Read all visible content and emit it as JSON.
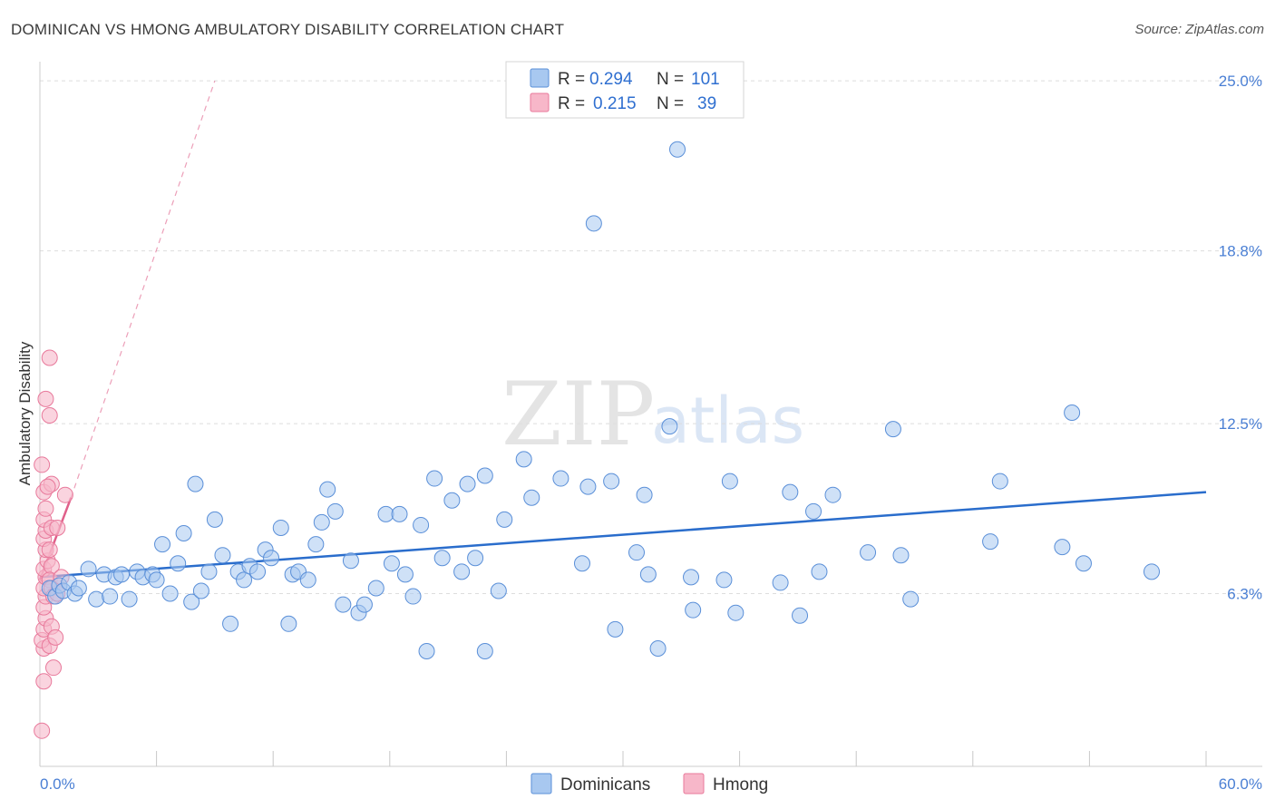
{
  "title": "DOMINICAN VS HMONG AMBULATORY DISABILITY CORRELATION CHART",
  "source": "Source: ZipAtlas.com",
  "watermark": {
    "zip": "ZIP",
    "atlas": "atlas"
  },
  "colors": {
    "dominican_fill": "#a8c8f0",
    "dominican_stroke": "#5a8fd8",
    "dominican_line": "#2a6dcc",
    "hmong_fill": "#f7b7c9",
    "hmong_stroke": "#e8799b",
    "hmong_line": "#e0608a",
    "grid": "#dddddd",
    "tick_text": "#4a7fd4"
  },
  "legend": {
    "rows": [
      {
        "r_label": "R =",
        "r_value": "0.294",
        "n_label": "N =",
        "n_value": "101"
      },
      {
        "r_label": "R =",
        "r_value": "0.215",
        "n_label": "N =",
        "n_value": "39"
      }
    ]
  },
  "bottom_legend": [
    "Dominicans",
    "Hmong"
  ],
  "chart_data": {
    "type": "scatter",
    "title": "DOMINICAN VS HMONG AMBULATORY DISABILITY CORRELATION CHART",
    "xlabel": "",
    "ylabel": "Ambulatory Disability",
    "xlim": [
      0,
      60
    ],
    "ylim": [
      0,
      25.7
    ],
    "x_tick_labels": [
      "0.0%",
      "60.0%"
    ],
    "y_ticks": [
      6.3,
      12.5,
      18.8,
      25.0
    ],
    "y_tick_labels": [
      "6.3%",
      "12.5%",
      "18.8%",
      "25.0%"
    ],
    "grid": true,
    "series": [
      {
        "name": "Dominicans",
        "r": 0.294,
        "n": 101,
        "trend": {
          "x0": 0,
          "y0": 6.9,
          "x1": 60,
          "y1": 10.0
        },
        "points": [
          [
            0.5,
            6.5
          ],
          [
            0.8,
            6.2
          ],
          [
            1.0,
            6.6
          ],
          [
            1.2,
            6.4
          ],
          [
            1.5,
            6.7
          ],
          [
            1.8,
            6.3
          ],
          [
            2.0,
            6.5
          ],
          [
            2.5,
            7.2
          ],
          [
            2.9,
            6.1
          ],
          [
            3.3,
            7.0
          ],
          [
            3.6,
            6.2
          ],
          [
            3.9,
            6.9
          ],
          [
            4.2,
            7.0
          ],
          [
            4.6,
            6.1
          ],
          [
            5.0,
            7.1
          ],
          [
            5.3,
            6.9
          ],
          [
            5.8,
            7.0
          ],
          [
            6.0,
            6.8
          ],
          [
            6.3,
            8.1
          ],
          [
            6.7,
            6.3
          ],
          [
            7.1,
            7.4
          ],
          [
            7.4,
            8.5
          ],
          [
            7.8,
            6.0
          ],
          [
            8.0,
            10.3
          ],
          [
            8.3,
            6.4
          ],
          [
            8.7,
            7.1
          ],
          [
            9.0,
            9.0
          ],
          [
            9.4,
            7.7
          ],
          [
            9.8,
            5.2
          ],
          [
            10.2,
            7.1
          ],
          [
            10.5,
            6.8
          ],
          [
            10.8,
            7.3
          ],
          [
            11.2,
            7.1
          ],
          [
            11.6,
            7.9
          ],
          [
            11.9,
            7.6
          ],
          [
            12.4,
            8.7
          ],
          [
            12.8,
            5.2
          ],
          [
            13.0,
            7.0
          ],
          [
            13.3,
            7.1
          ],
          [
            13.8,
            6.8
          ],
          [
            14.2,
            8.1
          ],
          [
            14.5,
            8.9
          ],
          [
            14.8,
            10.1
          ],
          [
            15.2,
            9.3
          ],
          [
            15.6,
            5.9
          ],
          [
            16.0,
            7.5
          ],
          [
            16.4,
            5.6
          ],
          [
            16.7,
            5.9
          ],
          [
            17.3,
            6.5
          ],
          [
            17.8,
            9.2
          ],
          [
            18.1,
            7.4
          ],
          [
            18.5,
            9.2
          ],
          [
            18.8,
            7.0
          ],
          [
            19.2,
            6.2
          ],
          [
            19.6,
            8.8
          ],
          [
            19.9,
            4.2
          ],
          [
            20.3,
            10.5
          ],
          [
            20.7,
            7.6
          ],
          [
            21.2,
            9.7
          ],
          [
            21.7,
            7.1
          ],
          [
            22.0,
            10.3
          ],
          [
            22.4,
            7.6
          ],
          [
            22.9,
            10.6
          ],
          [
            22.9,
            4.2
          ],
          [
            23.9,
            9.0
          ],
          [
            23.6,
            6.4
          ],
          [
            24.9,
            11.2
          ],
          [
            25.3,
            9.8
          ],
          [
            26.8,
            10.5
          ],
          [
            27.9,
            7.4
          ],
          [
            28.2,
            10.2
          ],
          [
            28.5,
            19.8
          ],
          [
            29.4,
            10.4
          ],
          [
            29.6,
            5.0
          ],
          [
            30.7,
            7.8
          ],
          [
            31.1,
            9.9
          ],
          [
            31.3,
            7.0
          ],
          [
            31.8,
            4.3
          ],
          [
            32.4,
            12.4
          ],
          [
            32.8,
            22.5
          ],
          [
            33.5,
            6.9
          ],
          [
            33.6,
            5.7
          ],
          [
            35.2,
            6.8
          ],
          [
            35.5,
            10.4
          ],
          [
            35.8,
            5.6
          ],
          [
            38.1,
            6.7
          ],
          [
            38.6,
            10.0
          ],
          [
            39.1,
            5.5
          ],
          [
            39.8,
            9.3
          ],
          [
            40.1,
            7.1
          ],
          [
            40.8,
            9.9
          ],
          [
            42.6,
            7.8
          ],
          [
            43.9,
            12.3
          ],
          [
            44.3,
            7.7
          ],
          [
            44.8,
            6.1
          ],
          [
            48.9,
            8.2
          ],
          [
            49.4,
            10.4
          ],
          [
            52.6,
            8.0
          ],
          [
            53.1,
            12.9
          ],
          [
            53.7,
            7.4
          ],
          [
            57.2,
            7.1
          ]
        ]
      },
      {
        "name": "Hmong",
        "r": 0.215,
        "n": 39,
        "trend": {
          "x0": 0,
          "y0": 6.8,
          "x1": 1.6,
          "y1": 9.8
        },
        "trend_dashed": {
          "x0": 1.6,
          "y0": 9.8,
          "x1": 9.0,
          "y1": 25.0
        },
        "points": [
          [
            0.1,
            1.3
          ],
          [
            0.2,
            3.1
          ],
          [
            0.2,
            4.3
          ],
          [
            0.1,
            4.6
          ],
          [
            0.2,
            5.0
          ],
          [
            0.3,
            5.4
          ],
          [
            0.2,
            5.8
          ],
          [
            0.3,
            6.2
          ],
          [
            0.2,
            6.5
          ],
          [
            0.3,
            6.9
          ],
          [
            0.2,
            7.2
          ],
          [
            0.4,
            7.5
          ],
          [
            0.3,
            7.9
          ],
          [
            0.2,
            8.3
          ],
          [
            0.3,
            8.6
          ],
          [
            0.2,
            9.0
          ],
          [
            0.3,
            9.4
          ],
          [
            0.2,
            10.0
          ],
          [
            0.1,
            11.0
          ],
          [
            0.3,
            13.4
          ],
          [
            0.5,
            12.8
          ],
          [
            0.5,
            14.9
          ],
          [
            0.6,
            10.3
          ],
          [
            0.6,
            8.7
          ],
          [
            0.5,
            7.9
          ],
          [
            0.6,
            7.3
          ],
          [
            0.5,
            6.8
          ],
          [
            0.6,
            6.5
          ],
          [
            0.7,
            6.2
          ],
          [
            0.6,
            5.1
          ],
          [
            0.5,
            4.4
          ],
          [
            0.7,
            3.6
          ],
          [
            0.8,
            4.7
          ],
          [
            0.9,
            6.3
          ],
          [
            1.0,
            6.6
          ],
          [
            0.9,
            8.7
          ],
          [
            1.1,
            6.9
          ],
          [
            1.3,
            9.9
          ],
          [
            0.4,
            10.2
          ]
        ]
      }
    ]
  }
}
